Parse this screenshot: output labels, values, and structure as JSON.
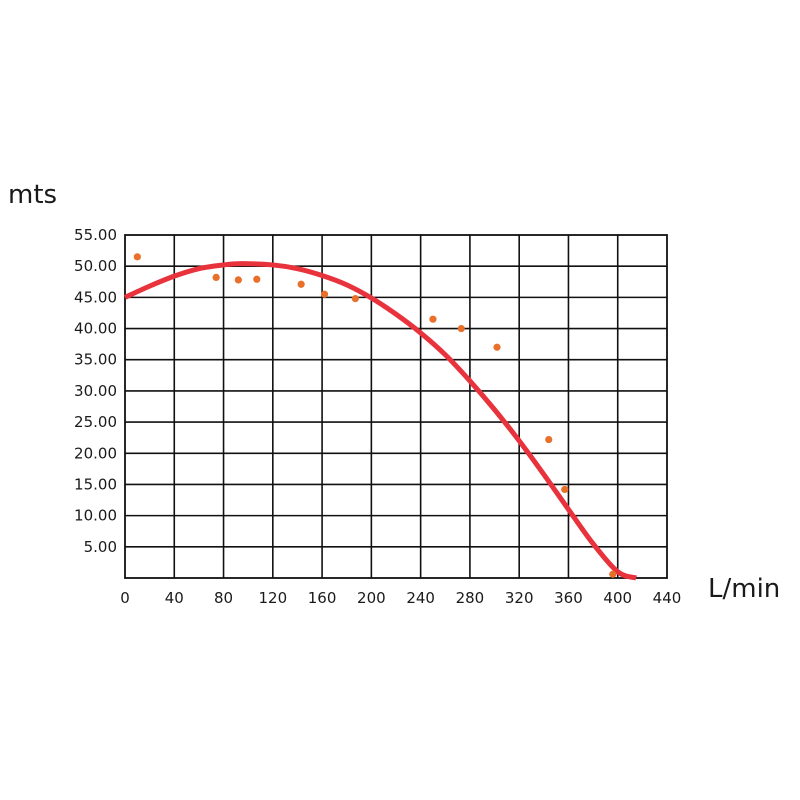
{
  "chart_data": {
    "type": "scatter",
    "xlabel": "L/min",
    "ylabel": "mts",
    "xlim": [
      0,
      440
    ],
    "ylim": [
      0,
      55
    ],
    "x_ticks": [
      0,
      40,
      80,
      120,
      160,
      200,
      240,
      280,
      320,
      360,
      400,
      440
    ],
    "x_tick_labels": [
      "0",
      "40",
      "80",
      "120",
      "160",
      "200",
      "240",
      "280",
      "320",
      "360",
      "400",
      "440"
    ],
    "y_ticks": [
      5,
      10,
      15,
      20,
      25,
      30,
      35,
      40,
      45,
      50,
      55
    ],
    "y_tick_labels": [
      "5.00",
      "10.00",
      "15.00",
      "20.00",
      "25.00",
      "30.00",
      "35.00",
      "40.00",
      "45.00",
      "50.00",
      "55.00"
    ],
    "grid": true,
    "series": [
      {
        "kind": "points",
        "color": "#e8702a",
        "x": [
          10,
          74,
          92,
          107,
          143,
          162,
          187,
          250,
          273,
          302,
          344,
          357,
          396
        ],
        "y": [
          51.5,
          48.2,
          47.8,
          47.9,
          47.1,
          45.5,
          44.8,
          41.5,
          40.0,
          37.0,
          22.2,
          14.2,
          0.6
        ]
      },
      {
        "kind": "curve",
        "color": "#e8323c",
        "x": [
          0,
          20,
          40,
          60,
          80,
          95,
          120,
          140,
          160,
          180,
          200,
          220,
          240,
          260,
          280,
          300,
          320,
          340,
          360,
          380,
          400,
          415
        ],
        "y": [
          45.0,
          46.8,
          48.4,
          49.6,
          50.2,
          50.4,
          50.2,
          49.6,
          48.5,
          47.0,
          44.9,
          42.3,
          39.3,
          35.8,
          31.6,
          27.0,
          22.0,
          16.6,
          11.0,
          5.5,
          1.0,
          0.0
        ]
      }
    ]
  }
}
